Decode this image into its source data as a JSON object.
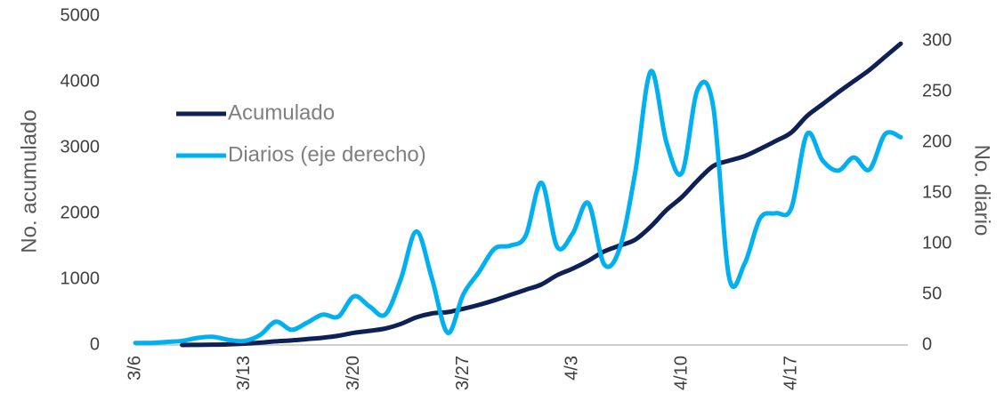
{
  "chart_data": {
    "type": "line",
    "categories": [
      "3/6",
      null,
      null,
      null,
      null,
      null,
      null,
      "3/13",
      null,
      null,
      null,
      null,
      null,
      null,
      "3/20",
      null,
      null,
      null,
      null,
      null,
      null,
      "3/27",
      null,
      null,
      null,
      null,
      null,
      null,
      "4/3",
      null,
      null,
      null,
      null,
      null,
      null,
      "4/10",
      null,
      null,
      null,
      null,
      null,
      null,
      "4/17",
      null,
      null,
      null,
      null,
      null,
      null,
      null
    ],
    "series": [
      {
        "name": "Acumulado",
        "color": "#0d2157",
        "values": [
          null,
          null,
          null,
          0,
          2,
          5,
          10,
          20,
          35,
          55,
          70,
          90,
          110,
          140,
          185,
          215,
          250,
          320,
          420,
          480,
          500,
          550,
          610,
          680,
          760,
          840,
          920,
          1060,
          1160,
          1280,
          1420,
          1510,
          1600,
          1800,
          2050,
          2250,
          2500,
          2720,
          2800,
          2870,
          2980,
          3100,
          3230,
          3480,
          3660,
          3840,
          4010,
          4180,
          4380,
          4580
        ]
      },
      {
        "name": "Diarios (eje derecho)",
        "color": "#00b0f0",
        "axis": "y2",
        "values": [
          2,
          2,
          3,
          4,
          7,
          8,
          5,
          4,
          10,
          23,
          15,
          22,
          30,
          28,
          48,
          38,
          30,
          65,
          112,
          65,
          12,
          50,
          72,
          95,
          98,
          108,
          160,
          97,
          110,
          140,
          80,
          95,
          170,
          270,
          200,
          170,
          252,
          235,
          68,
          80,
          125,
          130,
          135,
          208,
          182,
          172,
          185,
          173,
          208,
          205
        ]
      }
    ],
    "ylabel": "No. acumulado",
    "y2label": "No. diario",
    "ylim": [
      0,
      5000
    ],
    "yticks": [
      0,
      1000,
      2000,
      3000,
      4000,
      5000
    ],
    "y2lim": [
      0,
      300
    ],
    "y2ticks": [
      0,
      50,
      100,
      150,
      200,
      250,
      300
    ],
    "grid": false,
    "legend": "left"
  }
}
